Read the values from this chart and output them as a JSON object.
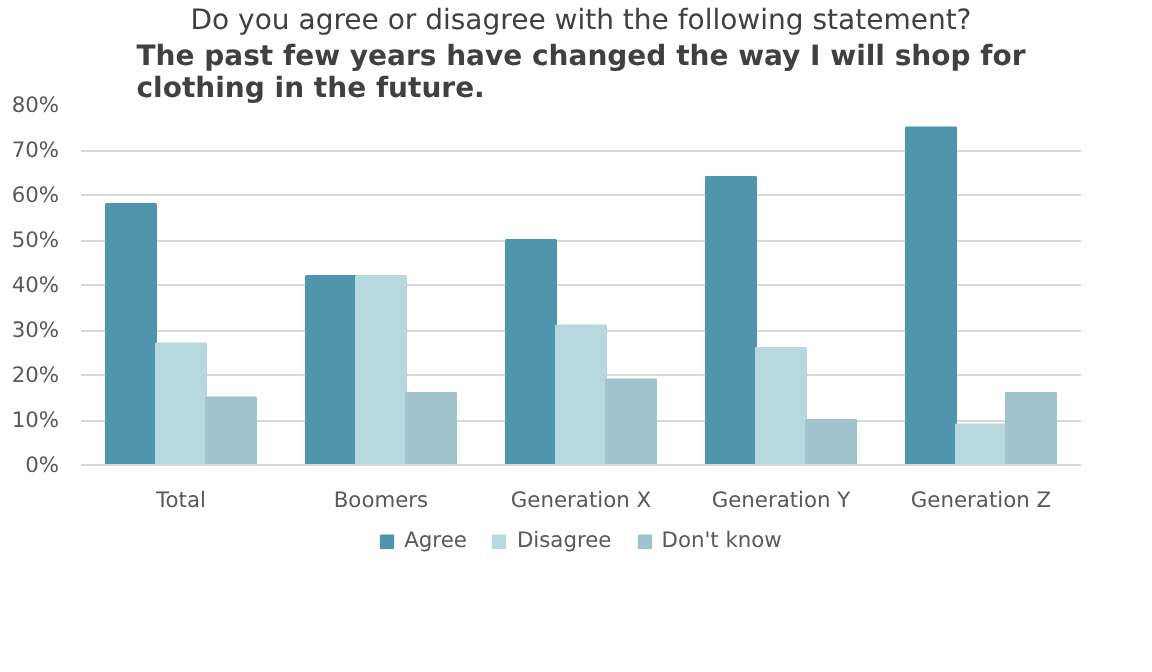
{
  "chart_data": {
    "type": "bar",
    "title": "Do you agree or disagree with the following statement?",
    "subtitle": "The past few years have changed the way I will shop for clothing in the future.",
    "categories": [
      "Total",
      "Boomers",
      "Generation X",
      "Generation Y",
      "Generation Z"
    ],
    "series": [
      {
        "name": "Agree",
        "color": "#4f96ad",
        "values": [
          58,
          42,
          50,
          64,
          75
        ]
      },
      {
        "name": "Disagree",
        "color": "#b8d8df",
        "values": [
          27,
          42,
          31,
          26,
          9
        ]
      },
      {
        "name": "Don't know",
        "color": "#a0c2cb",
        "values": [
          15,
          16,
          19,
          10,
          16
        ]
      }
    ],
    "ylim": [
      0,
      80
    ],
    "yticks": [
      {
        "value": 0,
        "label": "0%"
      },
      {
        "value": 10,
        "label": "10%"
      },
      {
        "value": 20,
        "label": "20%"
      },
      {
        "value": 30,
        "label": "30%"
      },
      {
        "value": 40,
        "label": "40%"
      },
      {
        "value": 50,
        "label": "50%"
      },
      {
        "value": 60,
        "label": "60%"
      },
      {
        "value": 70,
        "label": "70%"
      },
      {
        "value": 80,
        "label": "80%"
      }
    ],
    "grid": "y",
    "legend": "bottom"
  }
}
